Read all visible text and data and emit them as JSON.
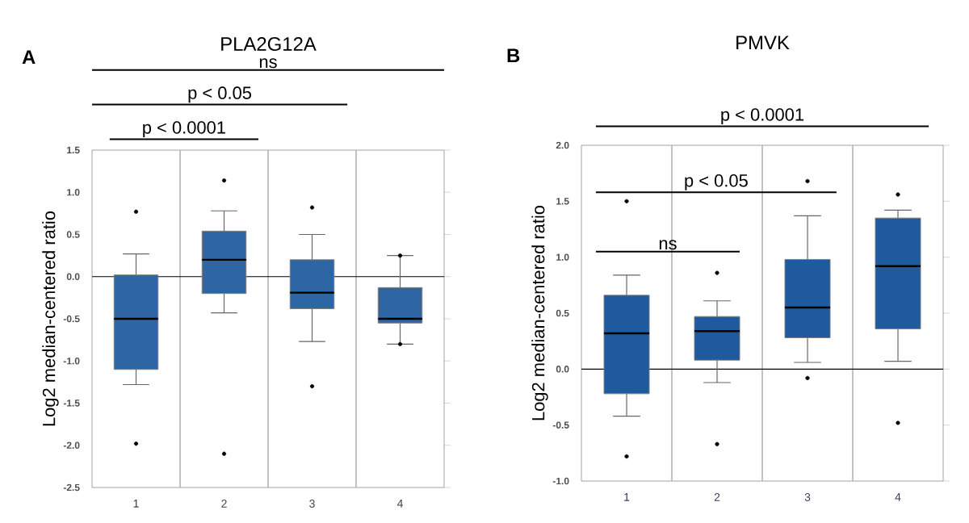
{
  "chart_data": [
    {
      "type": "box",
      "title": "PLA2G12A",
      "ylabel": "Log2 median-centered ratio",
      "annotations": [
        "A",
        "ns",
        "p < 0.05",
        "p < 0.0001"
      ],
      "categories": [
        "1",
        "2",
        "3",
        "4"
      ],
      "ylim": [
        -2.5,
        1.5
      ],
      "yticks": [
        {
          "value": -2.5,
          "label": "-2.5"
        },
        {
          "value": -2,
          "label": "-2.0"
        },
        {
          "value": -1.5,
          "label": "-1.5"
        },
        {
          "value": -1,
          "label": "-1.0"
        },
        {
          "value": -0.5,
          "label": "-0.5"
        },
        {
          "value": 0,
          "label": "0.0"
        },
        {
          "value": 0.5,
          "label": "0.5"
        },
        {
          "value": 1,
          "label": "1.0"
        },
        {
          "value": 1.5,
          "label": "1.5"
        }
      ],
      "ref_lines": [
        {
          "axis": "y",
          "value": 0,
          "color": "#000000"
        }
      ],
      "marker": "circle",
      "series": [
        {
          "color": "#2e65a3",
          "boxes": [
            {
              "low": -1.28,
              "q1": -1.1,
              "median": -0.5,
              "q3": 0.02,
              "high": 0.27,
              "outliers": [
                0.77,
                -1.98
              ]
            },
            {
              "low": -0.43,
              "q1": -0.2,
              "median": 0.2,
              "q3": 0.54,
              "high": 0.78,
              "outliers": [
                1.14,
                -2.1
              ]
            },
            {
              "low": -0.77,
              "q1": -0.38,
              "median": -0.19,
              "q3": 0.2,
              "high": 0.5,
              "outliers": [
                0.82,
                -1.3
              ]
            },
            {
              "low": -0.8,
              "q1": -0.55,
              "median": -0.5,
              "q3": -0.13,
              "high": 0.25,
              "outliers": [
                0.25,
                -0.8
              ]
            }
          ]
        }
      ]
    },
    {
      "type": "box",
      "title": "PMVK",
      "ylabel": "Log2 median-centered ratio",
      "annotations": [
        "B",
        "p < 0.0001",
        "p < 0.05",
        "ns"
      ],
      "categories": [
        "1",
        "2",
        "3",
        "4"
      ],
      "ylim": [
        -1,
        2
      ],
      "yticks": [
        {
          "value": -1,
          "label": "-1.0"
        },
        {
          "value": -0.5,
          "label": "-0.5"
        },
        {
          "value": 0,
          "label": "0.0"
        },
        {
          "value": 0.5,
          "label": "0.5"
        },
        {
          "value": 1,
          "label": "1.0"
        },
        {
          "value": 1.5,
          "label": "1.5"
        },
        {
          "value": 2,
          "label": "2.0"
        }
      ],
      "ref_lines": [
        {
          "axis": "y",
          "value": 0,
          "color": "#000000"
        }
      ],
      "marker": "circle",
      "series": [
        {
          "color": "#1f5a9e",
          "boxes": [
            {
              "low": -0.42,
              "q1": -0.22,
              "median": 0.32,
              "q3": 0.66,
              "high": 0.84,
              "outliers": [
                1.5,
                -0.78
              ]
            },
            {
              "low": -0.12,
              "q1": 0.08,
              "median": 0.34,
              "q3": 0.47,
              "high": 0.61,
              "outliers": [
                0.86,
                -0.67
              ]
            },
            {
              "low": 0.06,
              "q1": 0.28,
              "median": 0.55,
              "q3": 0.98,
              "high": 1.37,
              "outliers": [
                1.68,
                -0.08
              ]
            },
            {
              "low": 0.07,
              "q1": 0.36,
              "median": 0.92,
              "q3": 1.35,
              "high": 1.42,
              "outliers": [
                1.56,
                -0.48
              ]
            }
          ]
        }
      ]
    }
  ]
}
